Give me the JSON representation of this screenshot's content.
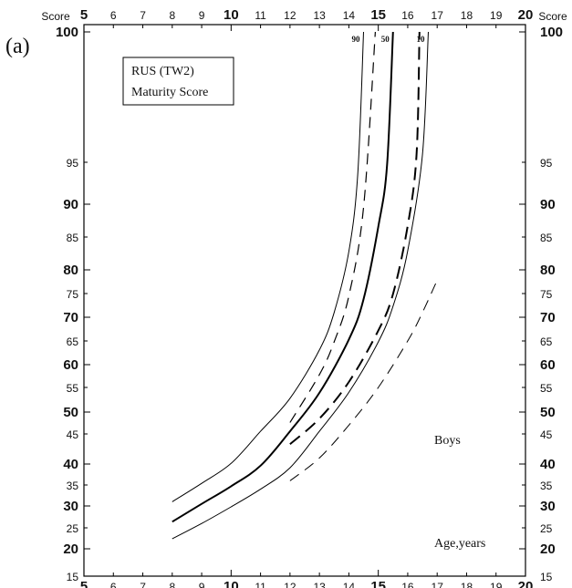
{
  "panel_label": "(a)",
  "chart_data": {
    "type": "line",
    "title_box": [
      "RUS (TW2)",
      "Maturity Score"
    ],
    "group_label": "Boys",
    "xlabel": "Age,years",
    "score_label_left": "Score",
    "score_label_right": "Score",
    "xlim": [
      5,
      20
    ],
    "x_ticks": [
      5,
      6,
      7,
      8,
      9,
      10,
      11,
      12,
      13,
      14,
      15,
      16,
      17,
      18,
      19,
      20
    ],
    "x_major_ticks": [
      5,
      10,
      15,
      20
    ],
    "top_score_ticks": [
      5,
      6,
      7,
      8,
      9,
      10,
      11,
      12,
      13,
      14,
      15,
      16,
      17,
      18,
      19,
      20
    ],
    "y_ticks": [
      15,
      20,
      25,
      30,
      35,
      40,
      45,
      50,
      55,
      60,
      65,
      70,
      75,
      80,
      85,
      90,
      95,
      100
    ],
    "y_major_ticks": [
      20,
      30,
      40,
      50,
      60,
      70,
      80,
      90,
      100
    ],
    "series": [
      {
        "name": "90",
        "style": "solid",
        "stroke_width": 1,
        "points": [
          [
            8,
            31
          ],
          [
            9,
            35.4
          ],
          [
            10,
            40.1
          ],
          [
            11,
            45.6
          ],
          [
            12,
            52.8
          ],
          [
            13,
            63.1
          ],
          [
            13.5,
            71
          ],
          [
            14,
            82.8
          ],
          [
            14.3,
            93.5
          ],
          [
            14.5,
            100
          ]
        ]
      },
      {
        "name": "",
        "style": "dashed",
        "stroke_width": 1.2,
        "points": [
          [
            12,
            47.6
          ],
          [
            13,
            57.8
          ],
          [
            13.5,
            64.8
          ],
          [
            14,
            74.5
          ],
          [
            14.5,
            89.5
          ],
          [
            14.9,
            100
          ]
        ]
      },
      {
        "name": "50",
        "style": "solid",
        "stroke_width": 2,
        "points": [
          [
            8,
            26.4
          ],
          [
            9,
            30.5
          ],
          [
            10,
            34.7
          ],
          [
            11,
            39.6
          ],
          [
            12,
            45.6
          ],
          [
            13,
            53.9
          ],
          [
            14,
            65.3
          ],
          [
            14.5,
            73.8
          ],
          [
            15,
            86.6
          ],
          [
            15.3,
            94.7
          ],
          [
            15.5,
            100
          ]
        ]
      },
      {
        "name": "",
        "style": "dashed",
        "stroke_width": 2,
        "points": [
          [
            12,
            43.3
          ],
          [
            13,
            48.5
          ],
          [
            14,
            56.2
          ],
          [
            15,
            67.2
          ],
          [
            15.5,
            74.9
          ],
          [
            16,
            86.7
          ],
          [
            16.3,
            95.3
          ],
          [
            16.4,
            100
          ]
        ]
      },
      {
        "name": "10",
        "style": "solid",
        "stroke_width": 1,
        "points": [
          [
            8,
            22.4
          ],
          [
            9,
            26
          ],
          [
            10,
            29.8
          ],
          [
            11,
            34
          ],
          [
            12,
            39.1
          ],
          [
            13,
            45.6
          ],
          [
            14,
            54
          ],
          [
            15,
            64.8
          ],
          [
            15.5,
            72.3
          ],
          [
            16,
            82.9
          ],
          [
            16.5,
            95.3
          ],
          [
            16.7,
            100
          ]
        ]
      },
      {
        "name": "",
        "style": "dashed",
        "stroke_width": 1,
        "points": [
          [
            12,
            36
          ],
          [
            13,
            41
          ],
          [
            14,
            47
          ],
          [
            15,
            55
          ],
          [
            16,
            65
          ],
          [
            16.5,
            71
          ],
          [
            17,
            77.8
          ]
        ]
      }
    ]
  }
}
